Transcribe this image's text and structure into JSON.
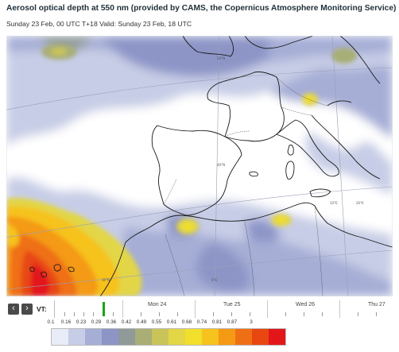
{
  "header": {
    "title": "Aerosol optical depth at 550 nm (provided by CAMS, the Copernicus Atmosphere Monitoring Service)",
    "subtitle": "Sunday 23 Feb, 00 UTC T+18 Valid: Sunday 23 Feb, 18 UTC"
  },
  "map": {
    "graticule_labels": [
      "40°N",
      "50°N",
      "0°E",
      "10°E",
      "20°E",
      "30°N"
    ]
  },
  "timeline": {
    "prev_icon": "chevron-left-icon",
    "next_icon": "chevron-right-icon",
    "vt_label": "VT:",
    "days": [
      "Mon 24",
      "Tue 25",
      "Wed 26",
      "Thu 27"
    ],
    "cursor_color": "#1aa31a"
  },
  "legend": {
    "ticks": [
      "0.1",
      "0.16",
      "0.23",
      "0.29",
      "0.36",
      "0.42",
      "0.49",
      "0.55",
      "0.61",
      "0.68",
      "0.74",
      "0.81",
      "0.87",
      "3"
    ],
    "colors": [
      "#e8ecf6",
      "#c7cde6",
      "#a6aed6",
      "#8d95c7",
      "#8f9a99",
      "#a8ae76",
      "#c9c45a",
      "#e2d646",
      "#f2df2c",
      "#f6c21d",
      "#f49a14",
      "#ef7014",
      "#e84712",
      "#e3161a"
    ]
  }
}
